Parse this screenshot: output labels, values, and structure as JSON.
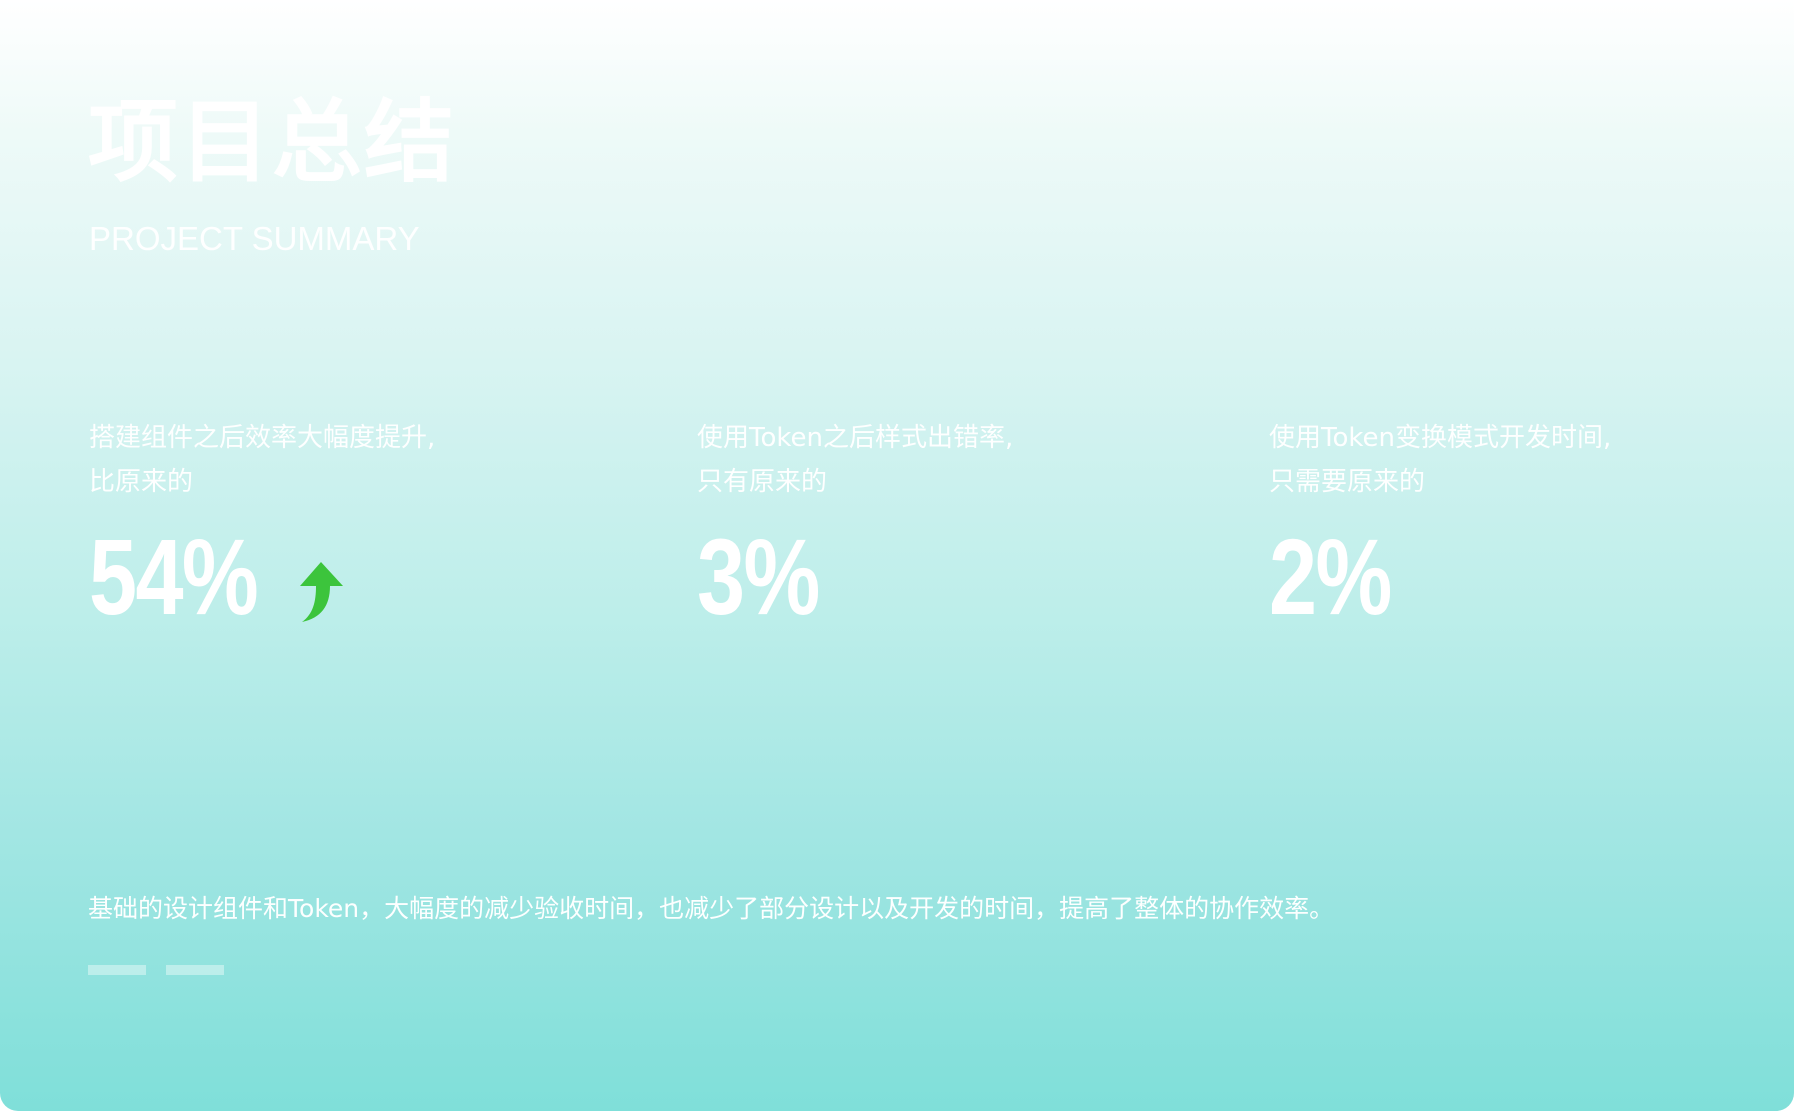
{
  "slide": {
    "title": "项目总结",
    "subtitle": "PROJECT SUMMARY",
    "metrics": [
      {
        "line1": "搭建组件之后效率大幅度提升,",
        "line2": "比原来的",
        "value": "54%",
        "trend_icon": "arrow-up-icon",
        "trend_color": "#3cc43c"
      },
      {
        "line1": "使用Token之后样式出错率,",
        "line2": "只有原来的",
        "value": "3%"
      },
      {
        "line1": "使用Token变换模式开发时间,",
        "line2": "只需要原来的",
        "value": "2%"
      }
    ],
    "footer_text": "基础的设计组件和Token，大幅度的减少验收时间，也减少了部分设计以及开发的时间，提高了整体的协作效率。",
    "colors": {
      "gradient_top": "#ffffff",
      "gradient_bottom": "#7fdfd9",
      "text": "#ffffff"
    }
  }
}
